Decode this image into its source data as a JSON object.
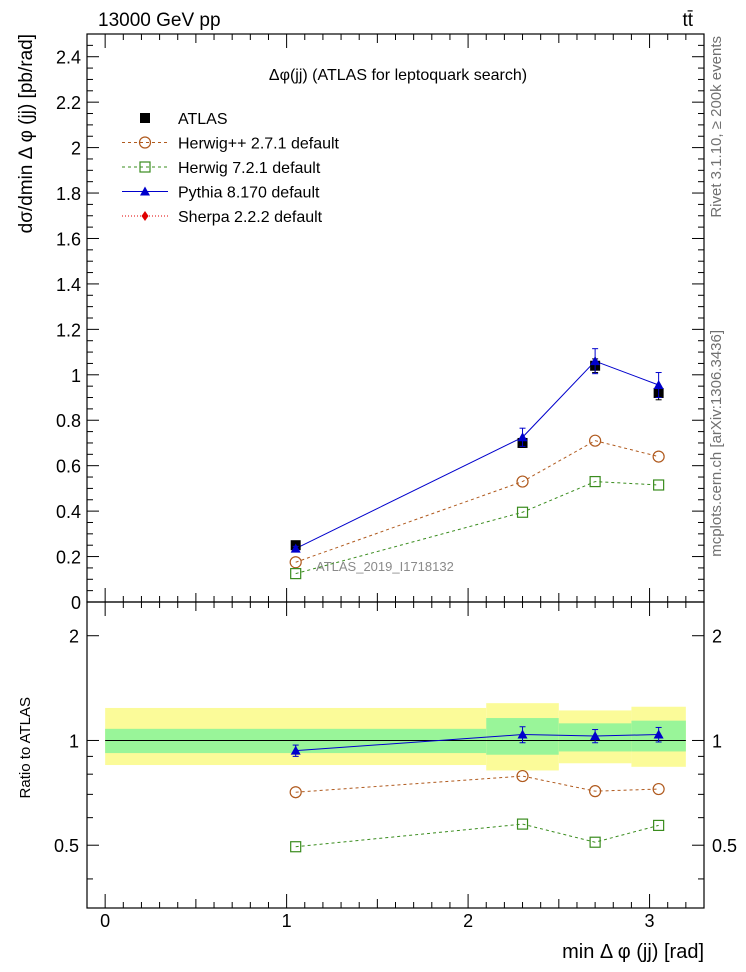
{
  "header": {
    "left": "13000 GeV pp",
    "right": "tt̄"
  },
  "side_labels": {
    "rivet": "Rivet 3.1.10, ≥ 200k events",
    "mcplots": "mcplots.cern.ch [arXiv:1306.3436]"
  },
  "colors": {
    "atlas": "#000000",
    "herwigpp": "#b05a1e",
    "herwig7": "#3a8c1e",
    "pythia": "#0000cc",
    "sherpa": "#e00000",
    "band_inner": "#99f599",
    "band_outer": "#fbfb99"
  },
  "chart_data": [
    {
      "type": "scatter",
      "title": "Δφ(jj) (ATLAS for leptoquark search)",
      "ylabel": "dσ/dmin Δ φ (jj) [pb/rad]",
      "xlim": [
        -0.1,
        3.3
      ],
      "ylim": [
        0,
        2.5
      ],
      "yticks": [
        "0",
        "0.2",
        "0.4",
        "0.6",
        "0.8",
        "1",
        "1.2",
        "1.4",
        "1.6",
        "1.8",
        "2",
        "2.2",
        "2.4"
      ],
      "legend_position": "top-left",
      "watermark": "ATLAS_2019_I1718132",
      "bin_edges": [
        0,
        2.1,
        2.5,
        2.9,
        3.2
      ],
      "series": [
        {
          "key": "atlas",
          "name": "ATLAS",
          "x": [
            1.05,
            2.3,
            2.7,
            3.05
          ],
          "y": [
            0.25,
            0.7,
            1.04,
            0.92
          ],
          "yerr": [
            0.01,
            0.02,
            0.03,
            0.03
          ]
        },
        {
          "key": "herwigpp",
          "name": "Herwig++ 2.7.1 default",
          "x": [
            1.05,
            2.3,
            2.7,
            3.05
          ],
          "y": [
            0.175,
            0.53,
            0.71,
            0.64
          ]
        },
        {
          "key": "herwig7",
          "name": "Herwig 7.2.1 default",
          "x": [
            1.05,
            2.3,
            2.7,
            3.05
          ],
          "y": [
            0.125,
            0.395,
            0.53,
            0.515
          ]
        },
        {
          "key": "pythia",
          "name": "Pythia 8.170 default",
          "x": [
            1.05,
            2.3,
            2.7,
            3.05
          ],
          "y": [
            0.235,
            0.725,
            1.06,
            0.955
          ],
          "yerr": [
            0.01,
            0.04,
            0.055,
            0.055
          ]
        },
        {
          "key": "sherpa",
          "name": "Sherpa 2.2.2 default",
          "x": [],
          "y": []
        }
      ]
    },
    {
      "type": "scatter",
      "xlabel": "min Δ φ (jj) [rad]",
      "ylabel": "Ratio to ATLAS",
      "xlim": [
        -0.1,
        3.3
      ],
      "ylim": [
        0.33,
        2.5
      ],
      "ytick_values": [
        0.5,
        1,
        2
      ],
      "ytick_labels": [
        "0.5",
        "1",
        "2"
      ],
      "xtick_values": [
        0,
        1,
        2,
        3
      ],
      "xtick_labels": [
        "0",
        "1",
        "2",
        "3"
      ],
      "bands": [
        {
          "x0": 0.0,
          "x1": 2.1,
          "inner": [
            0.92,
            1.08
          ],
          "outer": [
            0.85,
            1.24
          ]
        },
        {
          "x0": 2.1,
          "x1": 2.5,
          "inner": [
            0.91,
            1.16
          ],
          "outer": [
            0.82,
            1.28
          ]
        },
        {
          "x0": 2.5,
          "x1": 2.9,
          "inner": [
            0.93,
            1.12
          ],
          "outer": [
            0.86,
            1.22
          ]
        },
        {
          "x0": 2.9,
          "x1": 3.2,
          "inner": [
            0.93,
            1.14
          ],
          "outer": [
            0.84,
            1.25
          ]
        }
      ],
      "series": [
        {
          "key": "herwigpp",
          "x": [
            1.05,
            2.3,
            2.7,
            3.05
          ],
          "y": [
            0.71,
            0.79,
            0.715,
            0.725
          ]
        },
        {
          "key": "herwig7",
          "x": [
            1.05,
            2.3,
            2.7,
            3.05
          ],
          "y": [
            0.495,
            0.575,
            0.51,
            0.57
          ]
        },
        {
          "key": "pythia",
          "x": [
            1.05,
            2.3,
            2.7,
            3.05
          ],
          "y": [
            0.935,
            1.04,
            1.03,
            1.04
          ],
          "yerr": [
            0.035,
            0.055,
            0.045,
            0.05
          ]
        }
      ]
    }
  ]
}
